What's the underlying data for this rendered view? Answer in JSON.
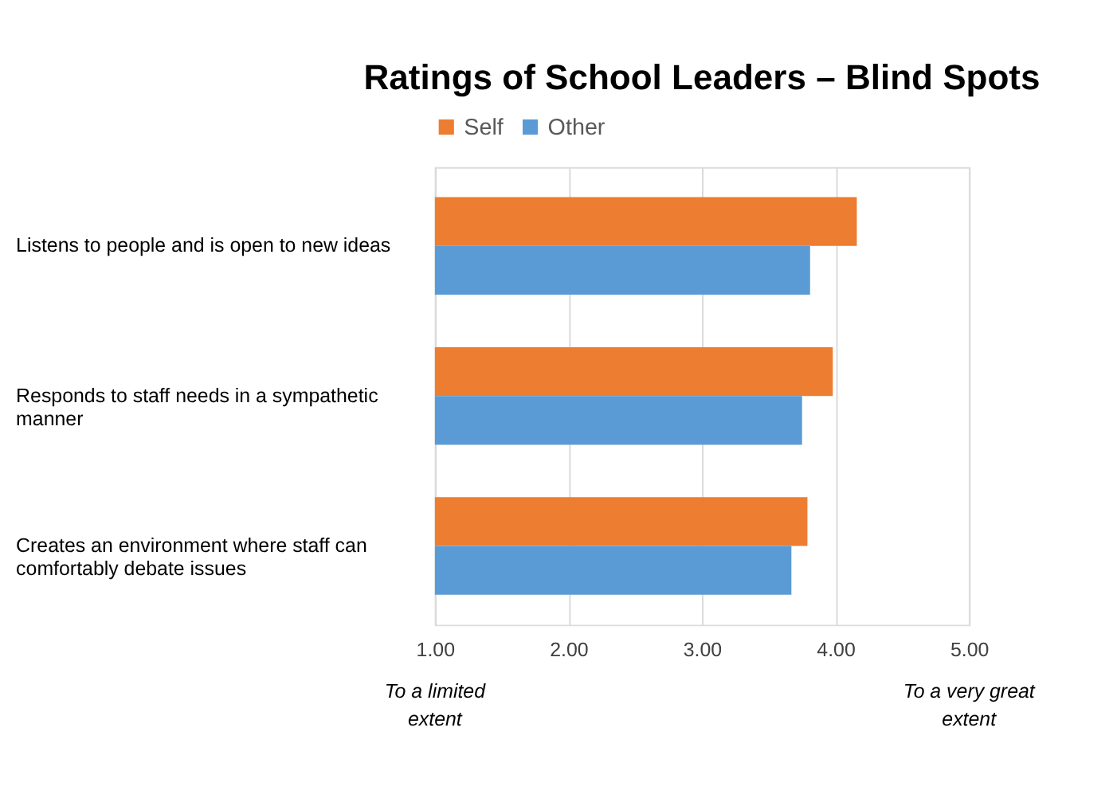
{
  "chart_data": {
    "type": "bar",
    "orientation": "horizontal",
    "title": "Ratings of School Leaders – Blind Spots",
    "categories": [
      "Listens to people and is open to new ideas",
      "Responds to staff needs in a sympathetic manner",
      "Creates an environment where staff can comfortably debate issues"
    ],
    "series": [
      {
        "name": "Self",
        "color": "#ed7d31",
        "values": [
          4.16,
          3.98,
          3.79
        ]
      },
      {
        "name": "Other",
        "color": "#5b9bd5",
        "values": [
          3.81,
          3.75,
          3.67
        ]
      }
    ],
    "xlim": [
      1,
      5
    ],
    "xticks": [
      {
        "value": 1,
        "label": "1.00"
      },
      {
        "value": 2,
        "label": "2.00"
      },
      {
        "value": 3,
        "label": "3.00"
      },
      {
        "value": 4,
        "label": "4.00"
      },
      {
        "value": 5,
        "label": "5.00"
      }
    ],
    "grid": "x",
    "legend": "top",
    "annotations": [
      "To a limited extent",
      "To a very great extent"
    ]
  }
}
